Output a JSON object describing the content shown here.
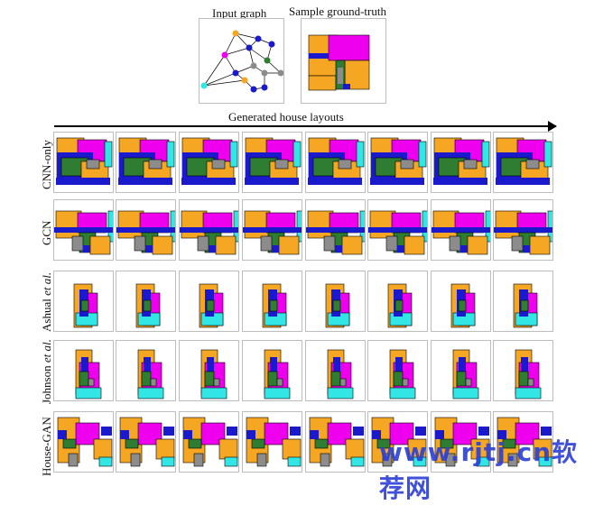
{
  "header": {
    "input_graph_label": "Input graph",
    "ground_truth_label": "Sample ground-truth",
    "generated_label": "Generated house layouts"
  },
  "rows": [
    {
      "label": "CNN-only",
      "label_italic": ""
    },
    {
      "label": "GCN",
      "label_italic": ""
    },
    {
      "label": "Ashual ",
      "label_italic": "et al."
    },
    {
      "label": "Johnson ",
      "label_italic": "et al."
    },
    {
      "label": "House-GAN",
      "label_italic": ""
    }
  ],
  "watermark": "www.rjtj.cn软荐网",
  "colors": {
    "orange": "#f5a623",
    "magenta": "#ee00ee",
    "blue": "#1a1acc",
    "green": "#2e7d32",
    "gray": "#8c8c8c",
    "cyan": "#33e6e6"
  }
}
